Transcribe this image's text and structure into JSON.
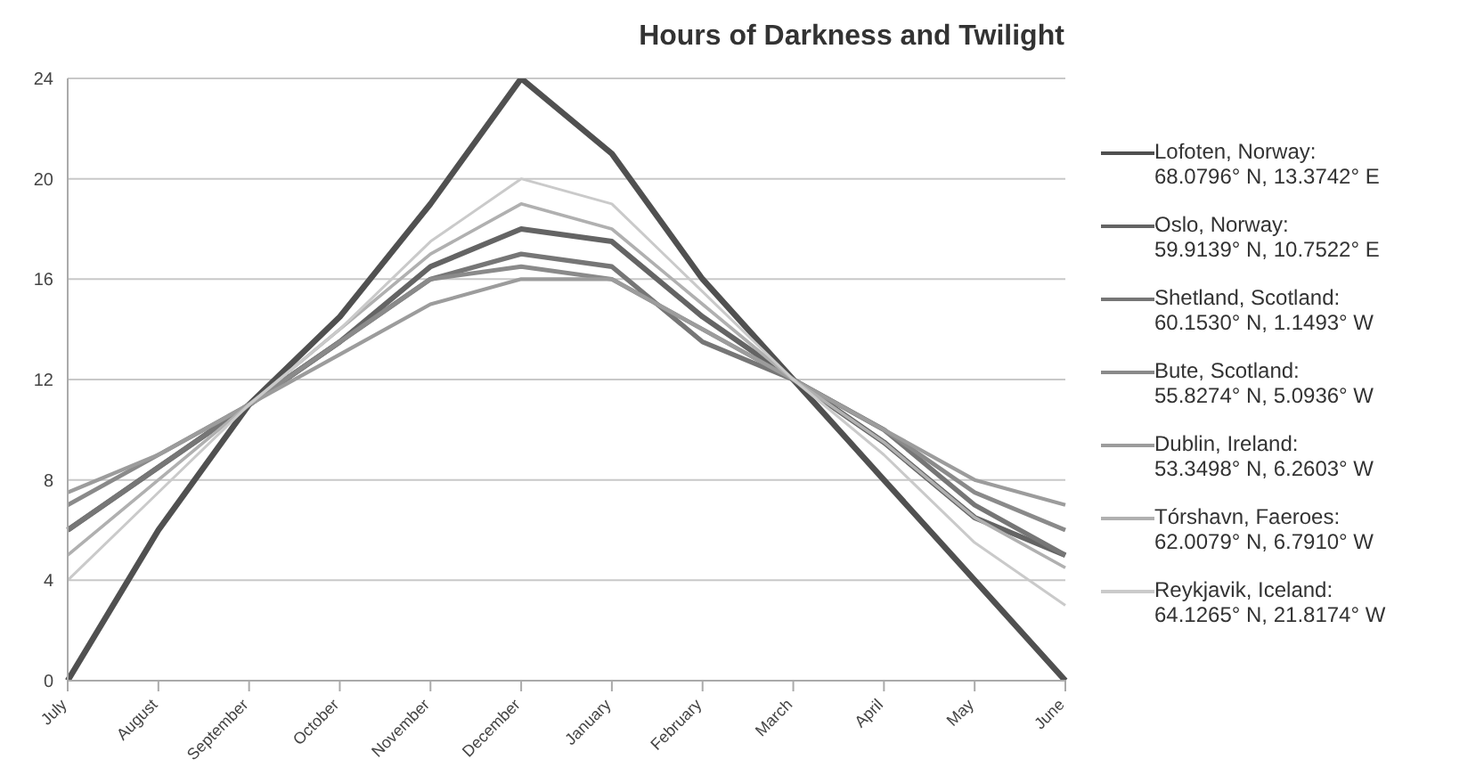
{
  "chart_data": {
    "type": "line",
    "title": "Hours of Darkness and Twilight",
    "categories": [
      "July",
      "August",
      "September",
      "October",
      "November",
      "December",
      "January",
      "February",
      "March",
      "April",
      "May",
      "June"
    ],
    "series": [
      {
        "name": "Lofoten, Norway: 68.0796° N, 13.3742° E",
        "color": "#505050",
        "values": [
          0,
          6,
          11,
          14.5,
          19,
          24,
          21,
          16,
          12,
          8,
          4,
          0
        ]
      },
      {
        "name": "Oslo, Norway: 59.9139° N, 10.7522° E",
        "color": "#646464",
        "values": [
          6,
          8.5,
          11,
          13.5,
          16.5,
          18,
          17.5,
          14.5,
          12,
          9.5,
          6.5,
          5
        ]
      },
      {
        "name": "Shetland, Scotland: 60.1530° N, 1.1493° W",
        "color": "#767676",
        "values": [
          6,
          8.5,
          11,
          13.5,
          16,
          17,
          16.5,
          13.5,
          12,
          10,
          7,
          5
        ]
      },
      {
        "name": "Bute, Scotland: 55.8274° N, 5.0936° W",
        "color": "#8a8a8a",
        "values": [
          7,
          9,
          11,
          13.5,
          16,
          16.5,
          16,
          14,
          12,
          10,
          7.5,
          6
        ]
      },
      {
        "name": "Dublin, Ireland: 53.3498° N, 6.2603° W",
        "color": "#9c9c9c",
        "values": [
          7.5,
          9,
          11,
          13,
          15,
          16,
          16,
          14,
          12,
          10,
          8,
          7
        ]
      },
      {
        "name": "Tórshavn, Faeroes: 62.0079° N, 6.7910° W",
        "color": "#b0b0b0",
        "values": [
          5,
          8,
          11,
          14,
          17,
          19,
          18,
          15,
          12,
          9.5,
          6.5,
          4.5
        ]
      },
      {
        "name": "Reykjavik, Iceland: 64.1265° N, 21.8174° W",
        "color": "#cacaca",
        "values": [
          4,
          7.5,
          11,
          14,
          17.5,
          20,
          19,
          15.5,
          12,
          9,
          5.5,
          3
        ]
      }
    ],
    "ylim": [
      0,
      24
    ],
    "yticks": [
      0,
      4,
      8,
      12,
      16,
      20,
      24
    ],
    "grid": "y",
    "legend": "right",
    "marker": "none",
    "line_style": "solid"
  }
}
